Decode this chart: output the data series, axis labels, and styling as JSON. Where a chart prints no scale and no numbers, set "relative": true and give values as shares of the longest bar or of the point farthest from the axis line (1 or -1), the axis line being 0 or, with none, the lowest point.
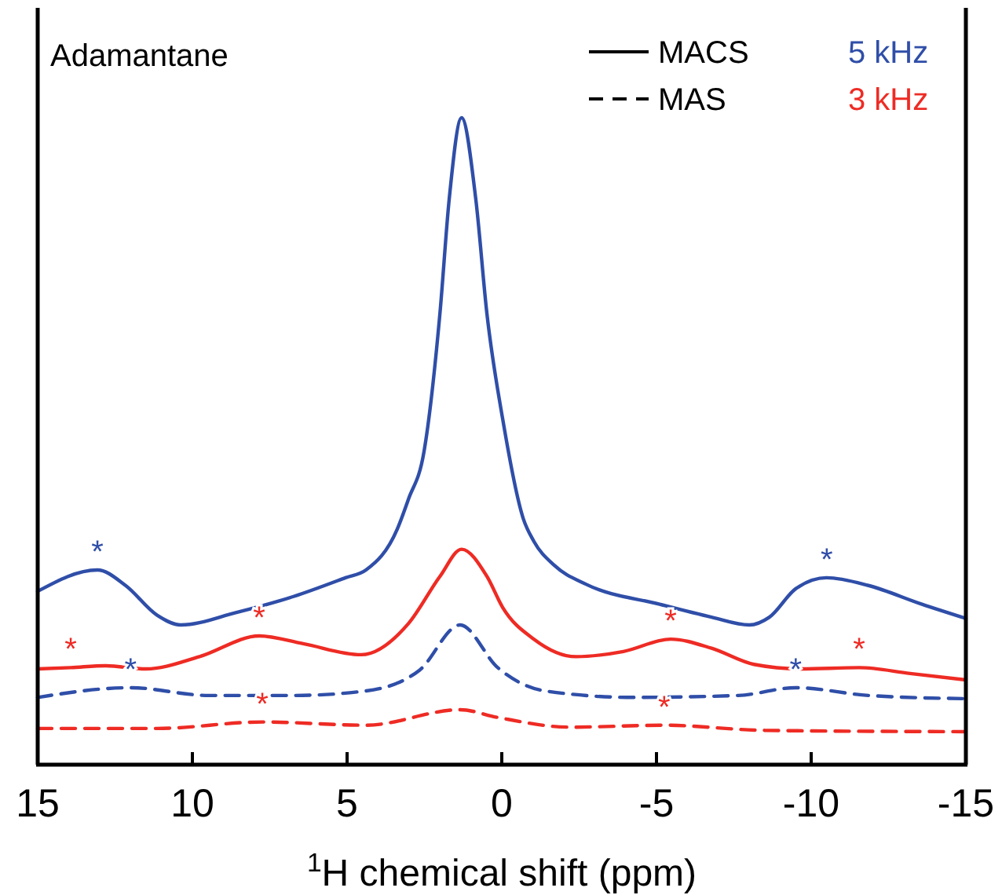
{
  "chart_data": {
    "type": "line",
    "relative": true,
    "title": "Adamantane",
    "xlabel": "$^{1}$H chemical shift (ppm)",
    "xlim": [
      15,
      -15
    ],
    "xticks": [
      15,
      10,
      5,
      0,
      -5,
      -10,
      -15
    ],
    "series": [
      {
        "color": "#2f4ea8",
        "line_style": "solid",
        "x": [
          15,
          13.07,
          12.16,
          11.14,
          10.38,
          8.6,
          6.73,
          5.05,
          4.39,
          3.38,
          3.02,
          2.51,
          2.0,
          1.7,
          1.3,
          0.84,
          0.48,
          -0.03,
          -0.69,
          -1.04,
          -1.7,
          -2.72,
          -5.1,
          -6.78,
          -8.0,
          -8.65,
          -9.5,
          -10.5,
          -11.85,
          -13.58,
          -15
        ],
        "values": [
          0.268,
          0.301,
          0.277,
          0.231,
          0.216,
          0.235,
          0.26,
          0.289,
          0.301,
          0.364,
          0.41,
          0.485,
          0.697,
          0.874,
          1.0,
          0.874,
          0.697,
          0.534,
          0.381,
          0.345,
          0.308,
          0.279,
          0.248,
          0.228,
          0.216,
          0.228,
          0.272,
          0.289,
          0.277,
          0.248,
          0.226
        ]
      },
      {
        "color": "#ee2b24",
        "line_style": "solid",
        "x": [
          15,
          13.93,
          12.8,
          11.5,
          9.77,
          7.84,
          6.42,
          4.54,
          3.02,
          2.0,
          1.3,
          0.48,
          -0.03,
          -1.04,
          -2.4,
          -3.93,
          -5.46,
          -6.78,
          -8.15,
          -9.67,
          -11.55,
          -13.2,
          -15
        ],
        "values": [
          0.148,
          0.15,
          0.153,
          0.148,
          0.167,
          0.199,
          0.187,
          0.17,
          0.218,
          0.291,
          0.333,
          0.291,
          0.243,
          0.194,
          0.167,
          0.175,
          0.194,
          0.18,
          0.155,
          0.148,
          0.15,
          0.141,
          0.131
        ]
      },
      {
        "color": "#2f4ea8",
        "line_style": "dashed",
        "x": [
          15,
          12.0,
          9.47,
          6.73,
          4.39,
          2.66,
          1.35,
          0.13,
          -1.4,
          -4.24,
          -7.64,
          -9.5,
          -11.85,
          -15
        ],
        "values": [
          0.104,
          0.119,
          0.107,
          0.107,
          0.114,
          0.146,
          0.216,
          0.15,
          0.114,
          0.104,
          0.107,
          0.119,
          0.107,
          0.102
        ]
      },
      {
        "color": "#ee2b24",
        "line_style": "dashed",
        "x": [
          15,
          11.14,
          7.74,
          4.39,
          1.35,
          0.13,
          -2.2,
          -5.25,
          -8.5,
          -15
        ],
        "values": [
          0.056,
          0.056,
          0.066,
          0.061,
          0.085,
          0.073,
          0.058,
          0.061,
          0.053,
          0.051
        ]
      }
    ],
    "annotations": [
      "MACS",
      "MAS",
      "5 kHz",
      "3 kHz",
      {
        "text": "*",
        "x": 13.07,
        "y": 0.301
      },
      {
        "text": "*",
        "x": -10.5,
        "y": 0.289
      },
      {
        "text": "*",
        "x": 13.93,
        "y": 0.15
      },
      {
        "text": "*",
        "x": 7.84,
        "y": 0.199
      },
      {
        "text": "*",
        "x": -5.46,
        "y": 0.194
      },
      {
        "text": "*",
        "x": -11.55,
        "y": 0.15
      },
      {
        "text": "*",
        "x": 12.0,
        "y": 0.119
      },
      {
        "text": "*",
        "x": -9.5,
        "y": 0.119
      },
      {
        "text": "*",
        "x": 7.74,
        "y": 0.066
      },
      {
        "text": "*",
        "x": -5.25,
        "y": 0.061
      }
    ]
  }
}
